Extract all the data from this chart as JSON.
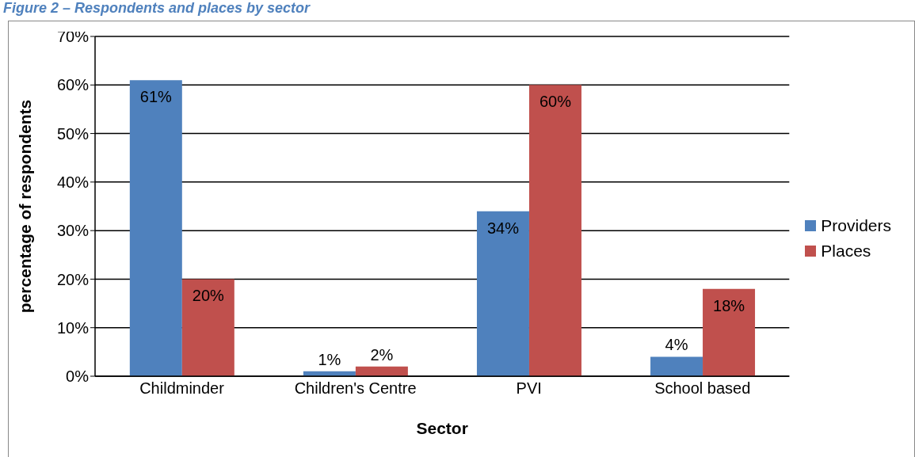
{
  "chart_data": {
    "type": "bar",
    "title": "Figure 2 – Respondents and places by sector",
    "xlabel": "Sector",
    "ylabel": "percentage of respondents",
    "categories": [
      "Childminder",
      "Children's Centre",
      "PVI",
      "School based"
    ],
    "series": [
      {
        "name": "Providers",
        "color": "#4f81bd",
        "values": [
          61,
          1,
          34,
          4
        ],
        "value_labels": [
          "61%",
          "1%",
          "34%",
          "4%"
        ]
      },
      {
        "name": "Places",
        "color": "#c0504d",
        "values": [
          20,
          2,
          60,
          18
        ],
        "value_labels": [
          "20%",
          "2%",
          "60%",
          "18%"
        ]
      }
    ],
    "ylim": [
      0,
      70
    ],
    "yticks": [
      {
        "value": 0,
        "label": "0%"
      },
      {
        "value": 10,
        "label": "10%"
      },
      {
        "value": 20,
        "label": "20%"
      },
      {
        "value": 30,
        "label": "30%"
      },
      {
        "value": 40,
        "label": "40%"
      },
      {
        "value": 50,
        "label": "50%"
      },
      {
        "value": 60,
        "label": "60%"
      },
      {
        "value": 70,
        "label": "70%"
      }
    ],
    "grid": "y",
    "legend": "right"
  }
}
